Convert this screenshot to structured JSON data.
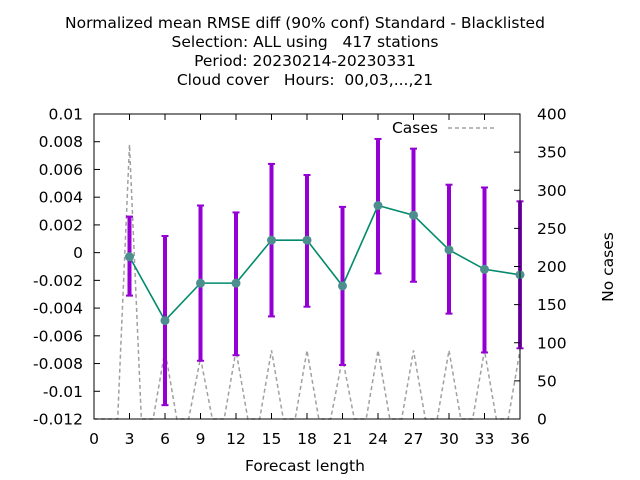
{
  "chart_data": {
    "type": "line",
    "title_lines": [
      "Normalized mean RMSE diff (90% conf) Standard - Blacklisted",
      "Selection: ALL using   417 stations",
      "Period: 20230214-20230331",
      "Cloud cover   Hours:  00,03,...,21"
    ],
    "xlabel": "Forecast length",
    "ylabel": "",
    "y2label": "No cases",
    "xlim": [
      0,
      36
    ],
    "ylim": [
      -0.012,
      0.01
    ],
    "y2lim": [
      0,
      400
    ],
    "x_ticks": [
      0,
      3,
      6,
      9,
      12,
      15,
      18,
      21,
      24,
      27,
      30,
      33,
      36
    ],
    "y_ticks": [
      -0.012,
      -0.01,
      -0.008,
      -0.006,
      -0.004,
      -0.002,
      0,
      0.002,
      0.004,
      0.006,
      0.008,
      0.01
    ],
    "y_tick_labels": [
      "-0.012",
      "-0.01",
      "-0.008",
      "-0.006",
      "-0.004",
      "-0.002",
      "0",
      "0.002",
      "0.004",
      "0.006",
      "0.008",
      "0.01"
    ],
    "y2_ticks": [
      0,
      50,
      100,
      150,
      200,
      250,
      300,
      350,
      400
    ],
    "grid": false,
    "legend_position": "top-right",
    "series": [
      {
        "kind": "line-errorbar",
        "color": "#008b6b",
        "marker_color": "#4d8f8f",
        "errorbar_color": "#9400d3",
        "x": [
          3,
          6,
          9,
          12,
          15,
          18,
          21,
          24,
          27,
          30,
          33,
          36
        ],
        "values": [
          -0.0003,
          -0.0049,
          -0.0022,
          -0.0022,
          0.0009,
          0.0009,
          -0.0024,
          0.0034,
          0.0027,
          0.0002,
          -0.0012,
          -0.0016
        ],
        "lower": [
          -0.0031,
          -0.011,
          -0.0078,
          -0.0074,
          -0.0046,
          -0.0039,
          -0.0081,
          -0.0015,
          -0.0021,
          -0.0044,
          -0.0072,
          -0.0069
        ],
        "upper": [
          0.0026,
          0.0012,
          0.0034,
          0.0029,
          0.0064,
          0.0056,
          0.0033,
          0.0082,
          0.0075,
          0.0049,
          0.0047,
          0.0037
        ]
      },
      {
        "name": "Cases",
        "kind": "dashed-line",
        "axis": "y2",
        "color": "#a0a0a0",
        "x": [
          0,
          1,
          2,
          3,
          4,
          5,
          6,
          7,
          8,
          9,
          10,
          11,
          12,
          13,
          14,
          15,
          16,
          17,
          18,
          19,
          20,
          21,
          22,
          23,
          24,
          25,
          26,
          27,
          28,
          29,
          30,
          31,
          32,
          33,
          34,
          35,
          36
        ],
        "values": [
          0,
          0,
          0,
          360,
          0,
          0,
          90,
          0,
          0,
          80,
          0,
          0,
          90,
          0,
          0,
          90,
          0,
          0,
          90,
          0,
          0,
          80,
          0,
          0,
          90,
          0,
          0,
          90,
          0,
          0,
          90,
          0,
          0,
          90,
          0,
          0,
          90
        ]
      }
    ]
  }
}
